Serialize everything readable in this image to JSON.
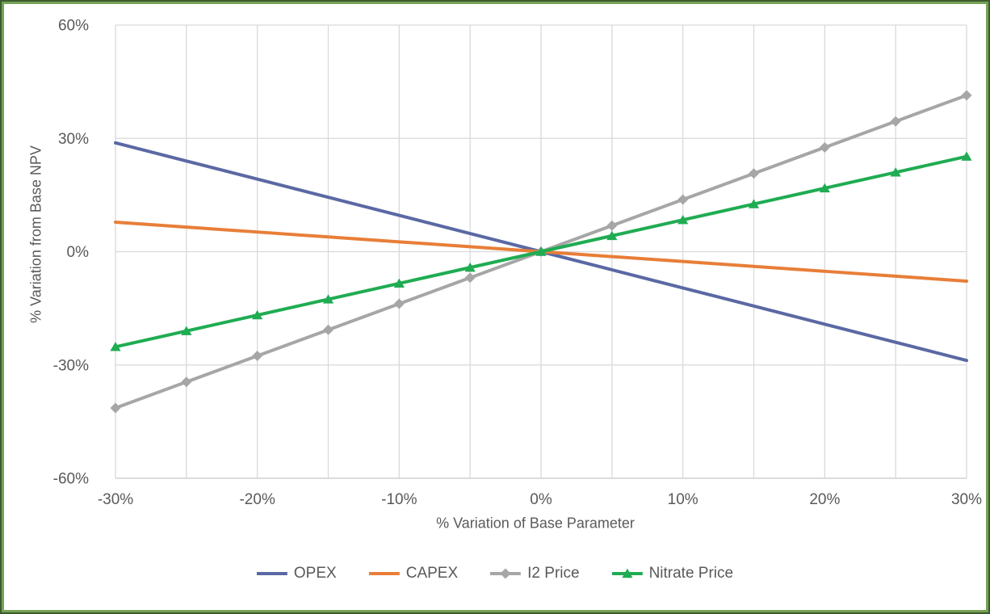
{
  "chart_data": {
    "type": "line",
    "title": "",
    "xlabel": "% Variation of Base Parameter",
    "ylabel": "% Variation from Base NPV",
    "x": [
      -30,
      -25,
      -20,
      -15,
      -10,
      -5,
      0,
      5,
      10,
      15,
      20,
      25,
      30
    ],
    "xlim": [
      -30,
      30
    ],
    "ylim": [
      -60,
      60
    ],
    "x_tick_values": [
      -30,
      -20,
      -10,
      0,
      10,
      20,
      30
    ],
    "x_tick_labels": [
      "-30%",
      "-20%",
      "-10%",
      "0%",
      "10%",
      "20%",
      "30%"
    ],
    "y_tick_values": [
      60,
      30,
      0,
      -30,
      -60
    ],
    "y_tick_labels": [
      "60%",
      "30%",
      "0%",
      "-30%",
      "-60%"
    ],
    "grid": {
      "vertical_spacing_pct": 5,
      "horizontal_spacing_pct": 30,
      "visible": true
    },
    "legend_position": "bottom-center",
    "series": [
      {
        "name": "OPEX",
        "color": "#5A69A3",
        "marker": "none",
        "values": [
          28.8,
          24.0,
          19.2,
          14.4,
          9.6,
          4.8,
          0,
          -4.8,
          -9.6,
          -14.4,
          -19.2,
          -24.0,
          -28.8
        ]
      },
      {
        "name": "CAPEX",
        "color": "#E87E38",
        "marker": "none",
        "values": [
          7.8,
          6.5,
          5.2,
          3.9,
          2.6,
          1.3,
          0,
          -1.3,
          -2.6,
          -3.9,
          -5.2,
          -6.5,
          -7.8
        ]
      },
      {
        "name": "I2 Price",
        "color": "#A6A6A6",
        "marker": "diamond",
        "values": [
          -41.4,
          -34.5,
          -27.6,
          -20.7,
          -13.8,
          -6.9,
          0,
          6.9,
          13.8,
          20.7,
          27.6,
          34.5,
          41.4
        ]
      },
      {
        "name": "Nitrate Price",
        "color": "#1FAC52",
        "marker": "triangle",
        "values": [
          -25.2,
          -21.0,
          -16.8,
          -12.6,
          -8.4,
          -4.2,
          0,
          4.2,
          8.4,
          12.6,
          16.8,
          21.0,
          25.2
        ]
      }
    ]
  },
  "colors": {
    "gridline": "#D9D9D9",
    "axis_line": "#C6C6C6",
    "tick_text": "#595959",
    "border_outer": "#3C5B2D",
    "border_inner": "#76A156",
    "background": "#FFFFFF"
  }
}
